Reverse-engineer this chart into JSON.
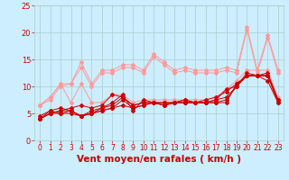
{
  "xlabel": "Vent moyen/en rafales ( km/h )",
  "background_color": "#cceeff",
  "grid_color": "#aacccc",
  "xlim": [
    -0.5,
    23.5
  ],
  "ylim": [
    0,
    25
  ],
  "xticks": [
    0,
    1,
    2,
    3,
    4,
    5,
    6,
    7,
    8,
    9,
    10,
    11,
    12,
    13,
    14,
    15,
    16,
    17,
    18,
    19,
    20,
    21,
    22,
    23
  ],
  "yticks": [
    0,
    5,
    10,
    15,
    20,
    25
  ],
  "series_light": [
    [
      6.5,
      8.0,
      10.5,
      10.5,
      14.5,
      10.5,
      13.0,
      13.0,
      14.0,
      14.0,
      13.0,
      16.0,
      14.5,
      13.0,
      13.5,
      13.0,
      13.0,
      13.0,
      13.5,
      13.0,
      21.0,
      13.0,
      19.5,
      13.0
    ],
    [
      6.5,
      7.5,
      10.0,
      10.5,
      13.5,
      10.0,
      12.5,
      12.5,
      13.5,
      13.5,
      12.5,
      15.5,
      14.0,
      12.5,
      13.0,
      12.5,
      12.5,
      12.5,
      13.0,
      12.5,
      20.5,
      12.5,
      19.0,
      12.5
    ],
    [
      6.5,
      8.0,
      10.5,
      7.0,
      10.5,
      7.0,
      7.0,
      8.5,
      8.5,
      7.0,
      7.5,
      7.5,
      7.5,
      7.5,
      7.5,
      7.5,
      7.5,
      8.0,
      9.5,
      11.0,
      13.0,
      13.0,
      13.0,
      8.0
    ]
  ],
  "series_dark": [
    [
      4.0,
      5.0,
      5.0,
      5.5,
      4.5,
      5.0,
      5.5,
      6.0,
      6.5,
      6.0,
      6.5,
      7.0,
      6.5,
      7.0,
      7.0,
      7.0,
      7.0,
      7.0,
      7.0,
      10.5,
      12.0,
      12.0,
      11.0,
      7.0
    ],
    [
      4.5,
      5.5,
      5.0,
      5.0,
      4.5,
      5.5,
      6.0,
      6.5,
      8.0,
      6.5,
      7.0,
      7.0,
      6.5,
      7.0,
      7.5,
      7.0,
      7.0,
      7.5,
      8.0,
      10.0,
      12.5,
      12.0,
      12.0,
      7.5
    ],
    [
      4.0,
      5.0,
      5.5,
      6.0,
      6.5,
      6.0,
      6.5,
      8.5,
      8.0,
      6.5,
      7.0,
      7.0,
      7.0,
      7.0,
      7.5,
      7.0,
      7.5,
      8.0,
      9.0,
      10.5,
      12.0,
      12.0,
      12.0,
      7.5
    ],
    [
      4.0,
      5.5,
      6.0,
      5.5,
      4.5,
      5.0,
      6.0,
      7.0,
      8.5,
      5.5,
      7.5,
      7.0,
      7.0,
      7.0,
      7.0,
      7.0,
      7.0,
      7.5,
      9.5,
      10.0,
      12.0,
      12.0,
      12.5,
      7.5
    ],
    [
      4.0,
      5.0,
      5.5,
      5.5,
      4.5,
      5.0,
      5.5,
      6.0,
      7.5,
      6.0,
      6.5,
      7.0,
      6.5,
      7.0,
      7.0,
      7.0,
      7.0,
      7.0,
      7.5,
      10.0,
      12.0,
      12.0,
      12.0,
      7.0
    ]
  ],
  "color_light": "#ff9999",
  "color_dark": "#cc0000",
  "font_color": "#cc0000",
  "tick_fontsize": 5.5,
  "xlabel_fontsize": 7.5
}
